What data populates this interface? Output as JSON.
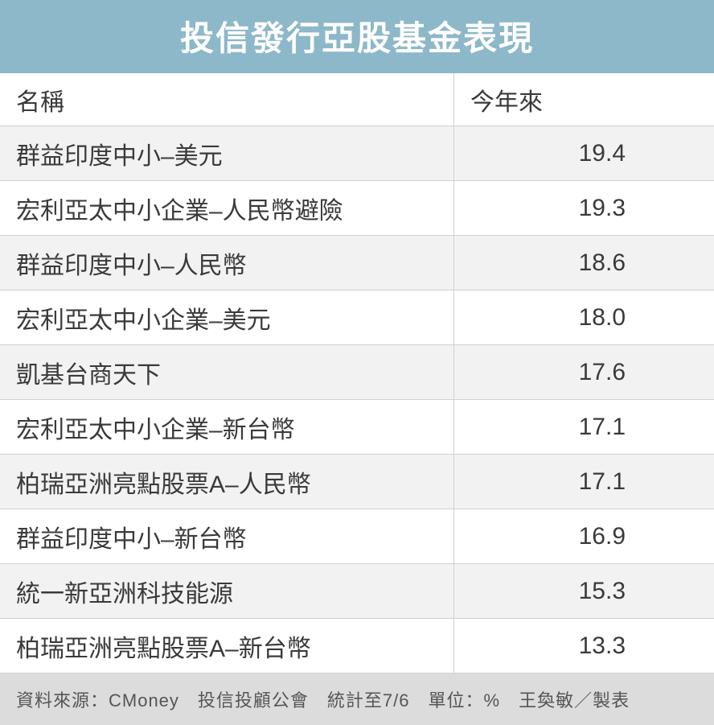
{
  "title": "投信發行亞股基金表現",
  "colors": {
    "header_bg": "#8db8c9",
    "header_text": "#ffffff",
    "row_odd_bg": "#f2f2f2",
    "row_even_bg": "#ffffff",
    "border": "#d0d0d0",
    "text": "#3a3a3a",
    "footer_bg": "#dcdcdc",
    "footer_text": "#555555"
  },
  "typography": {
    "title_fontsize": 42,
    "body_fontsize": 30,
    "footer_fontsize": 22
  },
  "columns": {
    "name": "名稱",
    "value": "今年來"
  },
  "rows": [
    {
      "name": "群益印度中小–美元",
      "value": "19.4"
    },
    {
      "name": "宏利亞太中小企業–人民幣避險",
      "value": "19.3"
    },
    {
      "name": "群益印度中小–人民幣",
      "value": "18.6"
    },
    {
      "name": "宏利亞太中小企業–美元",
      "value": "18.0"
    },
    {
      "name": "凱基台商天下",
      "value": "17.6"
    },
    {
      "name": "宏利亞太中小企業–新台幣",
      "value": "17.1"
    },
    {
      "name": "柏瑞亞洲亮點股票A–人民幣",
      "value": "17.1"
    },
    {
      "name": "群益印度中小–新台幣",
      "value": "16.9"
    },
    {
      "name": "統一新亞洲科技能源",
      "value": "15.3"
    },
    {
      "name": "柏瑞亞洲亮點股票A–新台幣",
      "value": "13.3"
    }
  ],
  "footer": "資料來源：CMoney　投信投顧公會　統計至7/6　單位：%　王奐敏／製表"
}
